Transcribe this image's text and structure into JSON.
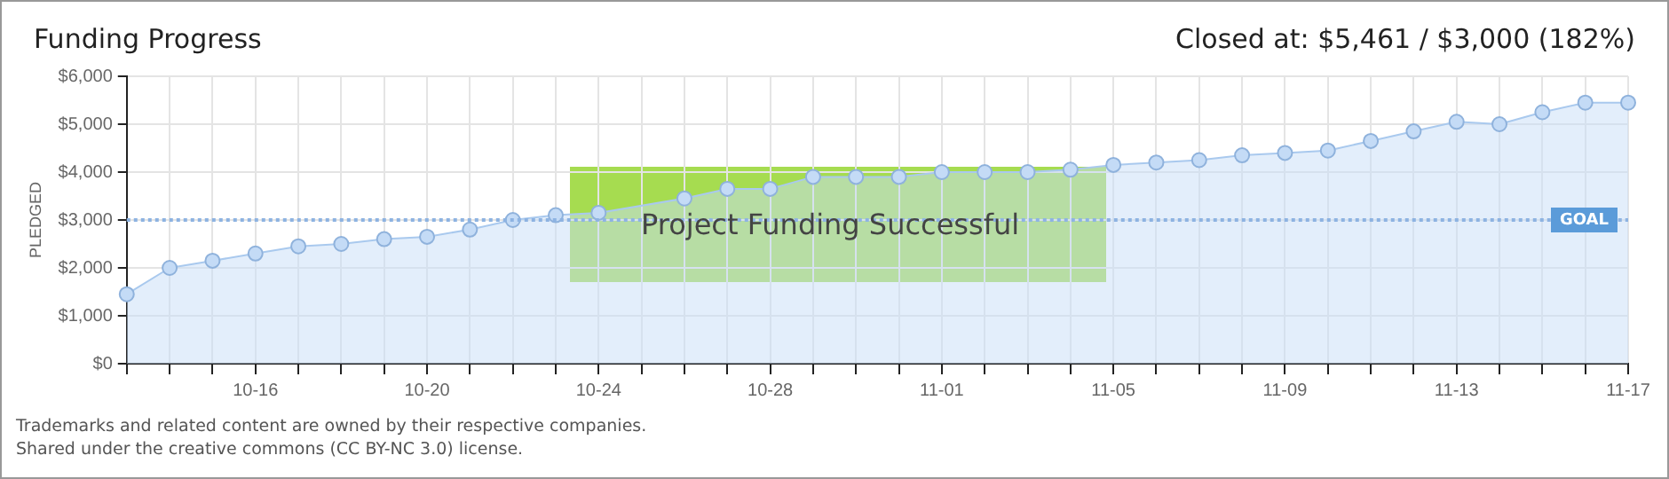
{
  "chart_data": {
    "type": "area",
    "title": "Funding Progress",
    "subtitle": "Closed at: $5,461 / $3,000 (182%)",
    "ylabel": "PLEDGED",
    "categories": [
      null,
      null,
      null,
      "10-16",
      null,
      null,
      null,
      "10-20",
      null,
      null,
      null,
      "10-24",
      null,
      null,
      null,
      "10-28",
      null,
      null,
      null,
      "11-01",
      null,
      null,
      null,
      "11-05",
      null,
      null,
      null,
      "11-09",
      null,
      null,
      null,
      "11-13",
      null,
      null,
      null,
      "11-17"
    ],
    "series": [
      {
        "color": "#a9c9ee",
        "values": [
          1450,
          2000,
          2150,
          2300,
          2450,
          2500,
          2600,
          2650,
          2800,
          3000,
          3100,
          3150,
          null,
          3450,
          3650,
          3650,
          3900,
          3900,
          3900,
          4000,
          4000,
          4000,
          4050,
          4150,
          4200,
          4250,
          4350,
          4400,
          4450,
          4650,
          4850,
          5050,
          5000,
          5250,
          5450,
          5450
        ]
      }
    ],
    "ylim": [
      0,
      6000
    ],
    "yticks": [
      {
        "value": 0,
        "label": "$0"
      },
      {
        "value": 1000,
        "label": "$1,000"
      },
      {
        "value": 2000,
        "label": "$2,000"
      },
      {
        "value": 3000,
        "label": "$3,000"
      },
      {
        "value": 4000,
        "label": "$4,000"
      },
      {
        "value": 5000,
        "label": "$5,000"
      },
      {
        "value": 6000,
        "label": "$6,000"
      }
    ],
    "ref_lines": [
      {
        "axis": "y",
        "value": 3000,
        "label": "GOAL",
        "color": "#8db3e2",
        "line_style": "dotted"
      }
    ],
    "annotations": [
      "Project Funding Successful",
      "Trademarks and related content are owned by their respective companies.",
      "Shared under the creative commons (CC BY-NC 3.0) license."
    ],
    "grid": true,
    "legend": false,
    "marker": "circle",
    "line_style": "solid"
  }
}
